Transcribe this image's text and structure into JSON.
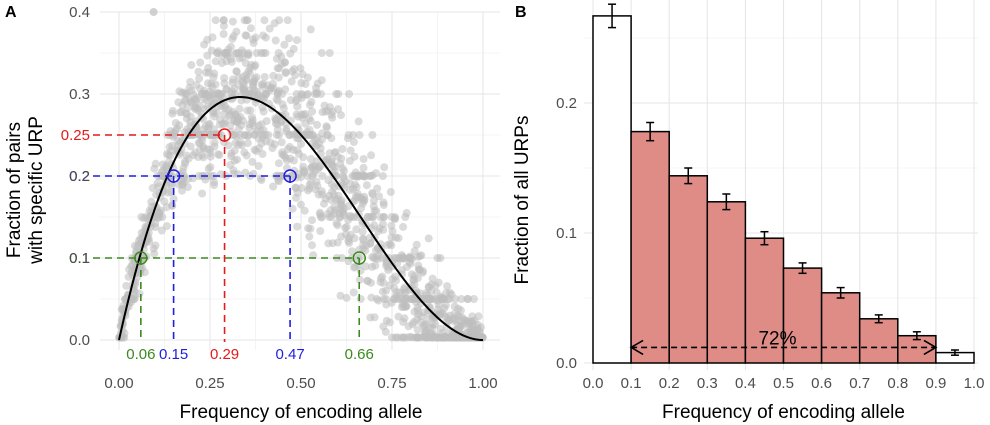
{
  "chart_data": [
    {
      "panel": "A",
      "type": "scatter",
      "xlabel": "Frequency of encoding allele",
      "ylabel_lines": [
        "Fraction of pairs",
        "with specific URP"
      ],
      "xlim": [
        0,
        1
      ],
      "ylim": [
        0,
        0.4
      ],
      "x_ticks": [
        0,
        0.25,
        0.5,
        0.75,
        1
      ],
      "x_tick_labels": [
        "0.00",
        "0.25",
        "0.50",
        "0.75",
        "1.00"
      ],
      "y_ticks": [
        0,
        0.1,
        0.2,
        0.3,
        0.4
      ],
      "y_tick_labels": [
        "0.0",
        "0.1",
        "0.2",
        "0.3",
        "0.4"
      ],
      "grid": true,
      "scatter_color": "#bdbdbd",
      "curve": {
        "name": "expected fraction",
        "formula": "2p(1-p)^2",
        "color": "#000000"
      },
      "annotations": [
        {
          "y": 0.25,
          "y_label": "0.25",
          "x_values": [
            0.29
          ],
          "x_labels": [
            "0.29"
          ],
          "color": "#e41a1c"
        },
        {
          "y": 0.2,
          "y_label": "0.2",
          "x_values": [
            0.15,
            0.47
          ],
          "x_labels": [
            "0.15",
            "0.47"
          ],
          "color": "#1f1fe0"
        },
        {
          "y": 0.1,
          "y_label": "0.1",
          "x_values": [
            0.06,
            0.66
          ],
          "x_labels": [
            "0.06",
            "0.66"
          ],
          "color": "#3a8a1e"
        }
      ]
    },
    {
      "panel": "B",
      "type": "bar",
      "xlabel": "Frequency of encoding allele",
      "ylabel": "Fraction of all URPs",
      "xlim": [
        0,
        1
      ],
      "ylim": [
        0,
        0.27
      ],
      "x_ticks": [
        0,
        0.1,
        0.2,
        0.3,
        0.4,
        0.5,
        0.6,
        0.7,
        0.8,
        0.9,
        1
      ],
      "x_tick_labels": [
        "0.0",
        "0.1",
        "0.2",
        "0.3",
        "0.4",
        "0.5",
        "0.6",
        "0.7",
        "0.8",
        "0.9",
        "1.0"
      ],
      "y_ticks": [
        0,
        0.1,
        0.2
      ],
      "y_tick_labels": [
        "0.0",
        "0.1",
        "0.2"
      ],
      "grid": true,
      "bins": [
        {
          "from": 0.0,
          "to": 0.1,
          "value": 0.267,
          "err": 0.009,
          "highlight": false
        },
        {
          "from": 0.1,
          "to": 0.2,
          "value": 0.178,
          "err": 0.007,
          "highlight": true
        },
        {
          "from": 0.2,
          "to": 0.3,
          "value": 0.144,
          "err": 0.006,
          "highlight": true
        },
        {
          "from": 0.3,
          "to": 0.4,
          "value": 0.124,
          "err": 0.006,
          "highlight": true
        },
        {
          "from": 0.4,
          "to": 0.5,
          "value": 0.096,
          "err": 0.005,
          "highlight": true
        },
        {
          "from": 0.5,
          "to": 0.6,
          "value": 0.073,
          "err": 0.004,
          "highlight": true
        },
        {
          "from": 0.6,
          "to": 0.7,
          "value": 0.054,
          "err": 0.004,
          "highlight": true
        },
        {
          "from": 0.7,
          "to": 0.8,
          "value": 0.034,
          "err": 0.003,
          "highlight": true
        },
        {
          "from": 0.8,
          "to": 0.9,
          "value": 0.021,
          "err": 0.003,
          "highlight": true
        },
        {
          "from": 0.9,
          "to": 1.0,
          "value": 0.008,
          "err": 0.002,
          "highlight": false
        }
      ],
      "highlight_color": "#e08c86",
      "bracket": {
        "from": 0.1,
        "to": 0.9,
        "y": 0.012,
        "label": "72%"
      }
    }
  ]
}
